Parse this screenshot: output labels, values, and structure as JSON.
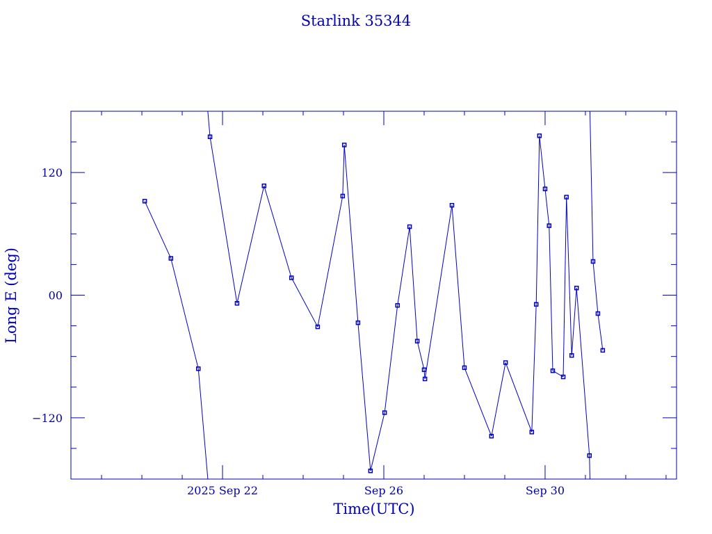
{
  "chart_data": {
    "type": "line",
    "title": "Starlink 35344",
    "xlabel": "Time(UTC)",
    "ylabel": "Long E (deg)",
    "x_unit": "day of September 2025",
    "xlim": [
      18.24,
      33.26
    ],
    "ylim": [
      -180,
      180
    ],
    "x_ticks": [
      {
        "value": 22,
        "label": "2025 Sep 22"
      },
      {
        "value": 26,
        "label": "Sep 26"
      },
      {
        "value": 30,
        "label": "Sep 30"
      }
    ],
    "y_ticks": [
      {
        "value": 120,
        "label": "120"
      },
      {
        "value": 0,
        "label": "00"
      },
      {
        "value": -120,
        "label": "−120"
      }
    ],
    "grid": false,
    "color": "#0000c0",
    "series": [
      {
        "name": "Long E",
        "x": [
          20.07,
          20.72,
          21.4,
          21.69,
          22.36,
          23.03,
          23.71,
          24.36,
          24.98,
          25.02,
          25.36,
          25.67,
          26.02,
          26.34,
          26.64,
          26.83,
          27.0,
          27.02,
          27.69,
          28.0,
          28.67,
          29.02,
          29.67,
          29.78,
          29.86,
          30.0,
          30.1,
          30.19,
          30.45,
          30.53,
          30.66,
          30.78,
          31.1,
          31.19,
          31.31,
          31.43
        ],
        "y": [
          92,
          36,
          -72,
          155,
          -8,
          107,
          17,
          -31,
          97,
          147,
          -27,
          -172,
          -115,
          -10,
          67,
          -45,
          -73,
          -82,
          88,
          -71,
          -138,
          -66,
          -134,
          -9,
          156,
          104,
          68,
          -74,
          -80,
          96,
          -59,
          7,
          -157,
          33,
          -18,
          -54
        ]
      }
    ]
  }
}
